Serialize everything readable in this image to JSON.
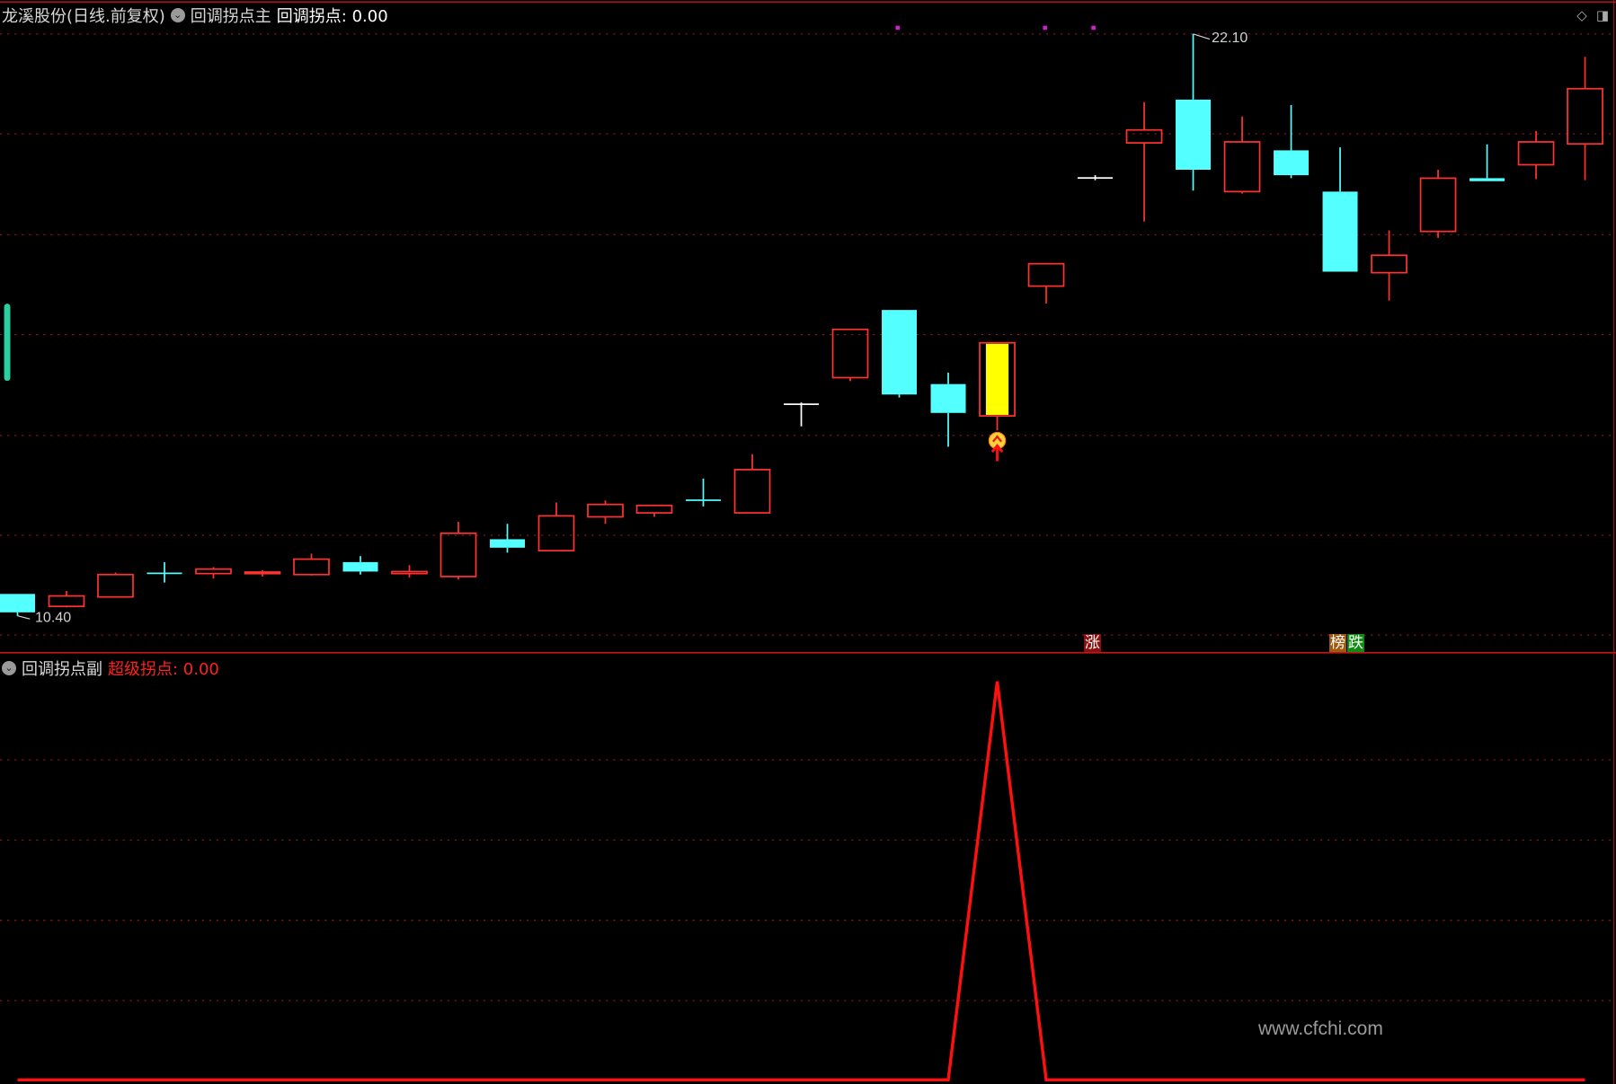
{
  "header": {
    "stock": "龙溪股份(日线.前复权)",
    "main_indicator": "回调拐点主",
    "main_label": "回调拐点",
    "main_value": ": 0.00"
  },
  "sub_header": {
    "sub_indicator": "回调拐点副",
    "sub_label": "超级拐点",
    "sub_value": ": 0.00"
  },
  "tags": {
    "rise": "涨",
    "rank": "榜",
    "fall": "跌"
  },
  "watermark": "www.cfchi.com",
  "colors": {
    "up": "#ff3232",
    "down": "#54ffff",
    "flat": "#ffffff",
    "signal": "#ffff00",
    "grid": "#8b1a1a",
    "indicator_line": "#ff1010"
  },
  "chart_data": [
    {
      "type": "candlestick",
      "title": "",
      "labels": {
        "high": "22.10",
        "low": "10.40"
      },
      "signal_index": 20,
      "ohlc": [
        [
          10.84,
          10.84,
          10.4,
          10.47
        ],
        [
          10.59,
          10.9,
          10.57,
          10.8
        ],
        [
          10.78,
          11.27,
          10.78,
          11.23
        ],
        [
          11.27,
          11.48,
          11.07,
          11.26
        ],
        [
          11.25,
          11.38,
          11.15,
          11.34
        ],
        [
          11.27,
          11.32,
          11.19,
          11.28
        ],
        [
          11.23,
          11.65,
          11.21,
          11.54
        ],
        [
          11.48,
          11.6,
          11.23,
          11.29
        ],
        [
          11.25,
          11.42,
          11.17,
          11.29
        ],
        [
          11.19,
          12.29,
          11.13,
          12.06
        ],
        [
          11.94,
          12.25,
          11.67,
          11.77
        ],
        [
          11.71,
          12.68,
          11.71,
          12.41
        ],
        [
          12.39,
          12.72,
          12.25,
          12.64
        ],
        [
          12.47,
          12.62,
          12.39,
          12.62
        ],
        [
          12.74,
          13.16,
          12.6,
          12.72
        ],
        [
          12.47,
          13.65,
          12.47,
          13.34
        ],
        [
          14.67,
          14.69,
          14.21,
          14.67
        ],
        [
          15.19,
          16.16,
          15.12,
          16.16
        ],
        [
          16.55,
          16.55,
          14.79,
          14.85
        ],
        [
          15.06,
          15.29,
          13.8,
          14.48
        ],
        [
          14.42,
          15.89,
          14.13,
          15.89
        ],
        [
          17.03,
          17.48,
          16.68,
          17.48
        ],
        [
          19.22,
          19.26,
          19.16,
          19.22
        ],
        [
          19.91,
          20.73,
          18.33,
          20.17
        ],
        [
          20.78,
          22.1,
          18.95,
          19.37
        ],
        [
          18.93,
          20.44,
          18.89,
          19.93
        ],
        [
          19.76,
          20.67,
          19.2,
          19.26
        ],
        [
          18.93,
          19.82,
          17.32,
          17.32
        ],
        [
          17.3,
          18.15,
          16.74,
          17.65
        ],
        [
          18.13,
          19.37,
          18.0,
          19.2
        ],
        [
          19.2,
          19.88,
          19.14,
          19.14
        ],
        [
          19.47,
          20.15,
          19.18,
          19.93
        ],
        [
          19.89,
          21.64,
          19.16,
          21.0
        ]
      ],
      "ylim": [
        10.2,
        22.2
      ],
      "grid": true
    },
    {
      "type": "line",
      "title": "",
      "values": [
        0,
        0,
        0,
        0,
        0,
        0,
        0,
        0,
        0,
        0,
        0,
        0,
        0,
        0,
        0,
        0,
        0,
        0,
        0,
        0,
        1,
        0,
        0,
        0,
        0,
        0,
        0,
        0,
        0,
        0,
        0,
        0,
        0
      ],
      "ylim": [
        0,
        1
      ],
      "grid": true
    }
  ]
}
